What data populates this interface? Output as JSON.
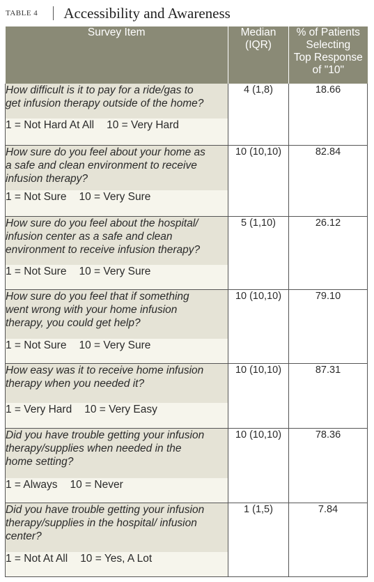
{
  "caption": {
    "label": "TABLE 4",
    "title": "Accessibility and Awareness"
  },
  "header": {
    "item": "Survey Item",
    "median_line1": "Median",
    "median_line2": "(IQR)",
    "pct_line1": "% of Patients",
    "pct_line2": "Selecting",
    "pct_line3": "Top Response",
    "pct_line4": "of \"10\""
  },
  "colors": {
    "header_bg": "#8a8a76",
    "question_bg": "#e5e3d6",
    "scale_bg": "#f6f5ec"
  },
  "rows": [
    {
      "question_lines": [
        "How difficult is it to pay for a ride/gas to",
        "get infusion therapy outside of the home?"
      ],
      "scale_low": "1 = Not Hard At All",
      "scale_high": "10 = Very Hard",
      "median": "4 (1,8)",
      "pct": "18.66"
    },
    {
      "question_lines": [
        "How sure do you feel about your home as",
        "a safe and clean environment to receive",
        "infusion therapy?"
      ],
      "scale_low": "1 = Not Sure",
      "scale_high": "10 = Very Sure",
      "median": "10 (10,10)",
      "pct": "82.84"
    },
    {
      "question_lines": [
        "How sure do you feel about the hospital/",
        "infusion center as a safe and clean",
        "environment to receive infusion therapy?"
      ],
      "scale_low": "1 = Not Sure",
      "scale_high": "10 = Very Sure",
      "median": "5 (1,10)",
      "pct": "26.12"
    },
    {
      "question_lines": [
        "How sure do you feel that if something",
        "went wrong with your home infusion",
        "therapy, you could get help?"
      ],
      "scale_low": "1 = Not Sure",
      "scale_high": "10 = Very Sure",
      "median": "10 (10,10)",
      "pct": "79.10"
    },
    {
      "question_lines": [
        "How easy was it to receive home infusion",
        "therapy when you needed it?"
      ],
      "scale_low": "1 = Very Hard",
      "scale_high": "10 = Very Easy",
      "median": "10 (10,10)",
      "pct": "87.31"
    },
    {
      "question_lines": [
        "Did you have trouble getting your infusion",
        "therapy/supplies when needed in the",
        "home setting?"
      ],
      "scale_low": "1 = Always",
      "scale_high": "10 = Never",
      "median": "10 (10,10)",
      "pct": "78.36"
    },
    {
      "question_lines": [
        "Did you have trouble getting your infusion",
        "therapy/supplies in the hospital/ infusion",
        "center?"
      ],
      "scale_low": "1 = Not At All",
      "scale_high": "10 = Yes, A Lot",
      "median": "1 (1,5)",
      "pct": "7.84"
    }
  ]
}
